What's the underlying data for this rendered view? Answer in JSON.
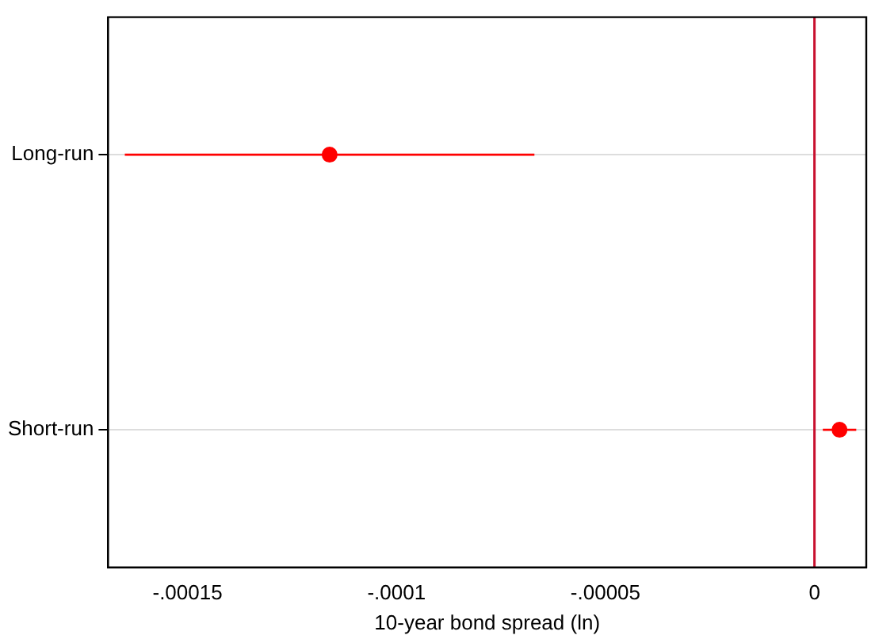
{
  "chart_data": {
    "type": "scatter",
    "orientation": "horizontal",
    "xlabel": "10-year bond spread (ln)",
    "categories": [
      "Long-run",
      "Short-run"
    ],
    "series": [
      {
        "color": "#ff0000",
        "values": [
          -0.000116,
          6e-06
        ],
        "errors": [
          [
            -0.000165,
            -6.7e-05
          ],
          [
            2e-06,
            1e-05
          ]
        ]
      }
    ],
    "xlim": [
      -0.000169,
      1.24e-05
    ],
    "xticks": [
      {
        "value": -0.00015,
        "label": "-.00015"
      },
      {
        "value": -0.0001,
        "label": "-.0001"
      },
      {
        "value": -5e-05,
        "label": "-.00005"
      },
      0
    ],
    "ref_lines": [
      {
        "axis": "x",
        "value": 0,
        "color": "#c8102e"
      }
    ],
    "grid": "y",
    "marker": "circle"
  }
}
